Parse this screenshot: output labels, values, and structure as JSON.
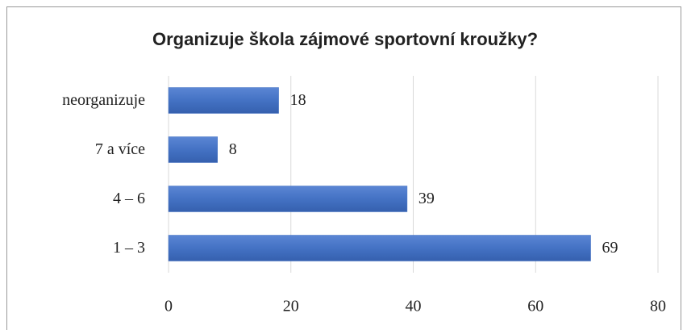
{
  "chart_data": {
    "type": "bar",
    "orientation": "horizontal",
    "title": "Organizuje škola zájmové sportovní kroužky?",
    "categories": [
      "neorganizuje",
      "7 a více",
      "4 – 6",
      "1 – 3"
    ],
    "values": [
      18,
      8,
      39,
      69
    ],
    "color": "#4472c4",
    "xlim": [
      0,
      80
    ],
    "xticks": [
      0,
      20,
      40,
      60,
      80
    ],
    "grid": true
  }
}
